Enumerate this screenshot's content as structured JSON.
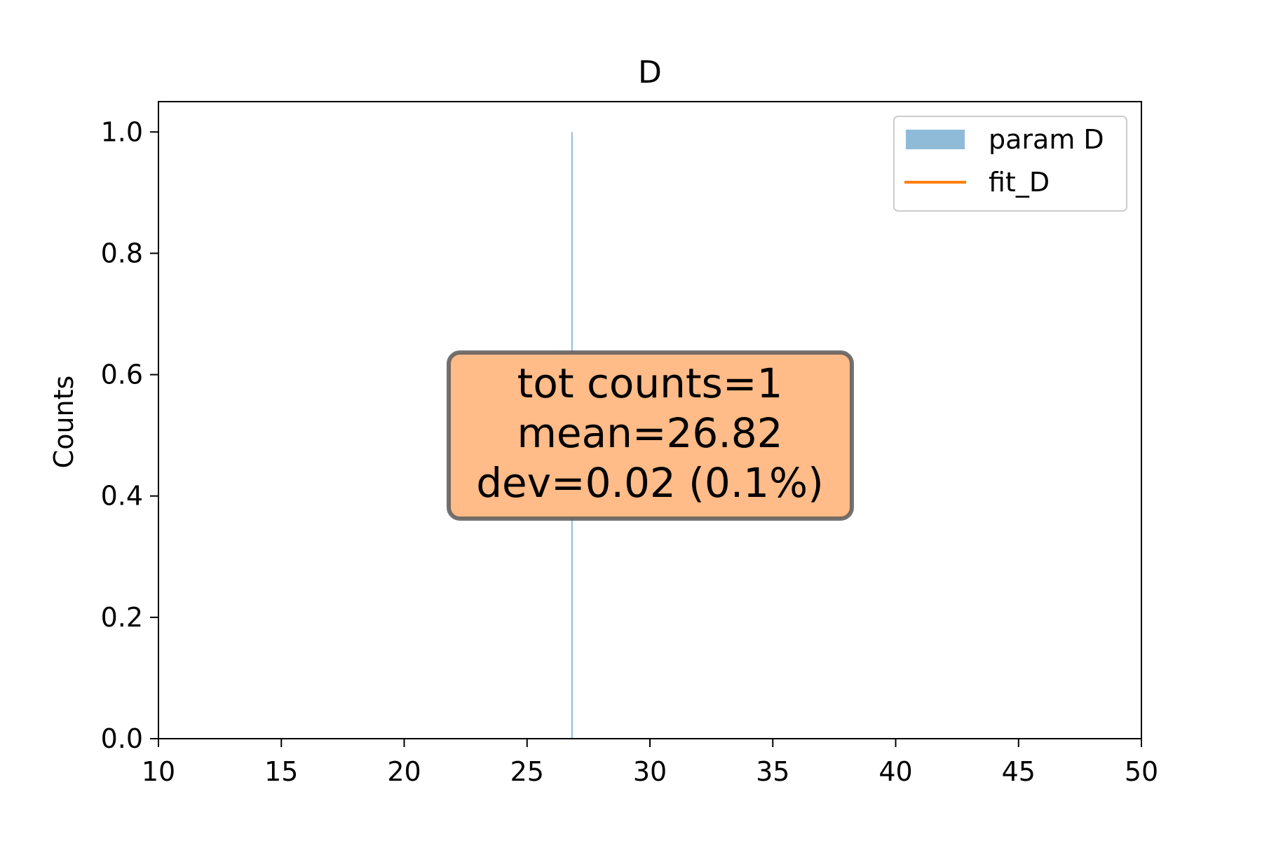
{
  "chart_data": {
    "type": "bar",
    "title": "D",
    "xlabel": "",
    "ylabel": "Counts",
    "xlim": [
      10,
      50
    ],
    "ylim": [
      0,
      1.05
    ],
    "xticks": [
      10,
      15,
      20,
      25,
      30,
      35,
      40,
      45,
      50
    ],
    "yticks": [
      0.0,
      0.2,
      0.4,
      0.6,
      0.8,
      1.0
    ],
    "xtick_labels": [
      "10",
      "15",
      "20",
      "25",
      "30",
      "35",
      "40",
      "45",
      "50"
    ],
    "ytick_labels": [
      "0.0",
      "0.2",
      "0.4",
      "0.6",
      "0.8",
      "1.0"
    ],
    "grid": false,
    "legend_position": "top-right",
    "series": [
      {
        "name": "param D",
        "kind": "histogram",
        "color": "#1f77b4",
        "bins": [
          {
            "x0": 26.8,
            "x1": 26.84,
            "count": 1
          }
        ]
      },
      {
        "name": "fit_D",
        "kind": "line",
        "color": "#ff7f0e",
        "points": []
      }
    ],
    "annotation": {
      "lines": [
        "tot counts=1",
        "mean=26.82",
        "dev=0.02 (0.1%)"
      ],
      "anchor_x": 30,
      "anchor_y": 0.5,
      "box_color": "#ffbb88",
      "edge_color": "#5a5a5a"
    }
  }
}
